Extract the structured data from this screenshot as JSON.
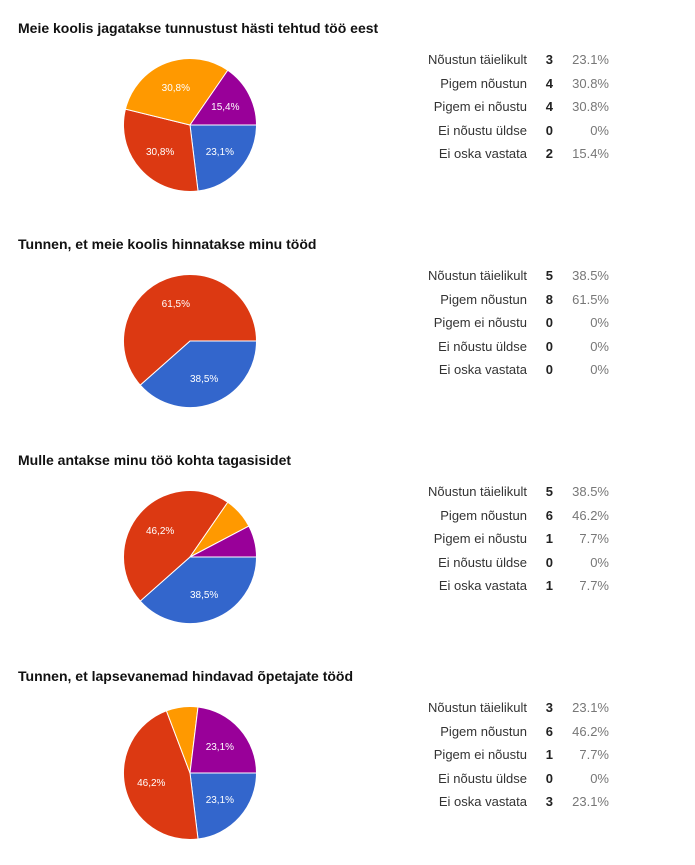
{
  "colors": {
    "series": [
      "#3366cc",
      "#dc3912",
      "#ff9900",
      "#109618",
      "#990099"
    ]
  },
  "chart_data": [
    {
      "type": "pie",
      "title": "Meie koolis jagatakse tunnustust hästi tehtud töö eest",
      "categories": [
        "Nõustun täielikult",
        "Pigem nõustun",
        "Pigem ei nõustu",
        "Ei nõustu üldse",
        "Ei oska vastata"
      ],
      "values": [
        3,
        4,
        4,
        0,
        2
      ],
      "percents": [
        "23.1%",
        "30.8%",
        "30.8%",
        "0%",
        "15.4%"
      ],
      "slice_labels": [
        "23,1%",
        "30,8%",
        "30,8%",
        "",
        "15,4%"
      ]
    },
    {
      "type": "pie",
      "title": "Tunnen, et meie koolis hinnatakse minu tööd",
      "categories": [
        "Nõustun täielikult",
        "Pigem nõustun",
        "Pigem ei nõustu",
        "Ei nõustu üldse",
        "Ei oska vastata"
      ],
      "values": [
        5,
        8,
        0,
        0,
        0
      ],
      "percents": [
        "38.5%",
        "61.5%",
        "0%",
        "0%",
        "0%"
      ],
      "slice_labels": [
        "38,5%",
        "61,5%",
        "",
        "",
        ""
      ]
    },
    {
      "type": "pie",
      "title": "Mulle antakse minu töö kohta tagasisidet",
      "categories": [
        "Nõustun täielikult",
        "Pigem nõustun",
        "Pigem ei nõustu",
        "Ei nõustu üldse",
        "Ei oska vastata"
      ],
      "values": [
        5,
        6,
        1,
        0,
        1
      ],
      "percents": [
        "38.5%",
        "46.2%",
        "7.7%",
        "0%",
        "7.7%"
      ],
      "slice_labels": [
        "38,5%",
        "46,2%",
        "",
        "",
        ""
      ]
    },
    {
      "type": "pie",
      "title": "Tunnen, et lapsevanemad hindavad õpetajate tööd",
      "categories": [
        "Nõustun täielikult",
        "Pigem nõustun",
        "Pigem ei nõustu",
        "Ei nõustu üldse",
        "Ei oska vastata"
      ],
      "values": [
        3,
        6,
        1,
        0,
        3
      ],
      "percents": [
        "23.1%",
        "46.2%",
        "7.7%",
        "0%",
        "23.1%"
      ],
      "slice_labels": [
        "23,1%",
        "46,2%",
        "",
        "",
        "23,1%"
      ]
    }
  ]
}
